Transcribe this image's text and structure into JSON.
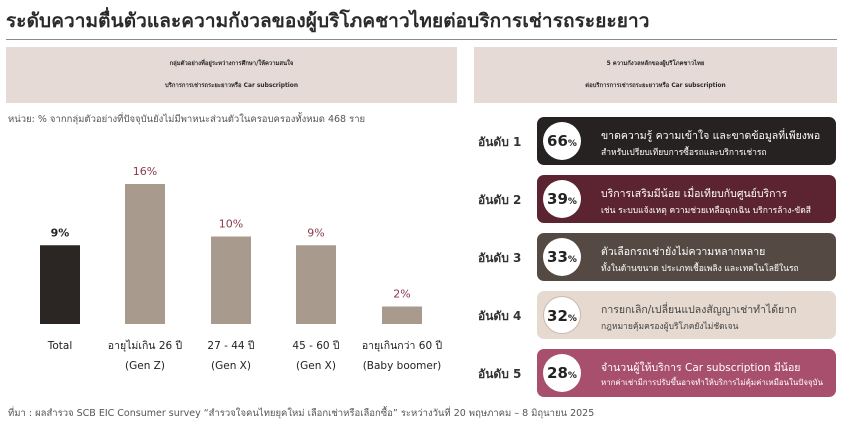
{
  "title": "ระดับความตื่นตัวและความกังวลของผู้บริโภคชาวไทยต่อบริการเช่ารถระยะยาว",
  "left_panel": {
    "heading_line1": "กลุ่มตัวอย่างที่อยู่ระหว่างการศึกษา/ให้ความสนใจ",
    "heading_line2": "บริการการเช่ารถระยะยาวหรือ Car subscription",
    "note": "หน่วย: % จากกลุ่มตัวอย่างที่ปัจจุบันยังไม่มีพาหนะส่วนตัวในครอบครองทั้งหมด 468 ราย"
  },
  "chart_data": {
    "type": "bar",
    "categories": [
      {
        "line1": "Total",
        "line2": ""
      },
      {
        "line1": "อายุไม่เกิน 26 ปี",
        "line2": "(Gen Z)"
      },
      {
        "line1": "27 - 44 ปี",
        "line2": "(Gen X)"
      },
      {
        "line1": "45 - 60 ปี",
        "line2": "(Gen X)"
      },
      {
        "line1": "อายุเกินกว่า 60 ปี",
        "line2": "(Baby boomer)"
      }
    ],
    "values": [
      9,
      16,
      10,
      9,
      2
    ],
    "labels": [
      "9%",
      "16%",
      "10%",
      "9%",
      "2%"
    ],
    "colors": [
      "#2b2624",
      "#a89a8d",
      "#a89a8d",
      "#a89a8d",
      "#a89a8d"
    ],
    "label_colors": [
      "#222222",
      "#8a3b4c",
      "#8a3b4c",
      "#8a3b4c",
      "#8a3b4c"
    ],
    "ylim": [
      0,
      16
    ]
  },
  "right_panel": {
    "heading_line1": "5 ความกังวลหลักของผู้บริโภคชาวไทย",
    "heading_line2": "ต่อบริการการเช่ารถระยะยาวหรือ Car subscription",
    "concerns": [
      {
        "rank": "อันดับ 1",
        "value": "66",
        "unit": "%",
        "line1": "ขาดความรู้ ความเข้าใจ และขาดข้อมูลที่เพียงพอ",
        "line2": "สำหรับเปรียบเทียบการซื้อรถและบริการเช่ารถ",
        "bg": "#252221",
        "fg": "#ffffff"
      },
      {
        "rank": "อันดับ 2",
        "value": "39",
        "unit": "%",
        "line1": "บริการเสริมมีน้อย เมื่อเทียบกับศูนย์บริการ",
        "line2": "เช่น ระบบแจ้งเหตุ ความช่วยเหลือฉุกเฉิน บริการล้าง-ขัดสี",
        "bg": "#5c2430",
        "fg": "#ffffff"
      },
      {
        "rank": "อันดับ 3",
        "value": "33",
        "unit": "%",
        "line1": "ตัวเลือกรถเช่ายังไม่ความหลากหลาย",
        "line2": "ทั้งในด้านขนาด ประเภทเชื้อเพลิง และเทคโนโลยีในรถ",
        "bg": "#544a43",
        "fg": "#ffffff"
      },
      {
        "rank": "อันดับ 4",
        "value": "32",
        "unit": "%",
        "line1": "การยกเลิก/เปลี่ยนแปลงสัญญาเช่าทำได้ยาก",
        "line2": "กฎหมายคุ้มครองผู้บริโภคยังไม่ชัดเจน",
        "bg": "#e5d9d0",
        "fg": "#444444"
      },
      {
        "rank": "อันดับ 5",
        "value": "28",
        "unit": "%",
        "line1": "จำนวนผู้ให้บริการ Car subscription มีน้อย",
        "line2": "หากค่าเช่ามีการปรับขึ้นอาจทำให้บริการไม่คุ้มค่าเหมือนในปัจจุบัน",
        "bg": "#a84f6e",
        "fg": "#ffffff"
      }
    ]
  },
  "source": "ที่มา : ผลสำรวจ SCB EIC Consumer survey “สำรวจใจคนไทยยุคใหม่ เลือกเช่าหรือเลือกซื้อ” ระหว่างวันที่ 20 พฤษภาคม – 8 มิถุนายน 2025"
}
